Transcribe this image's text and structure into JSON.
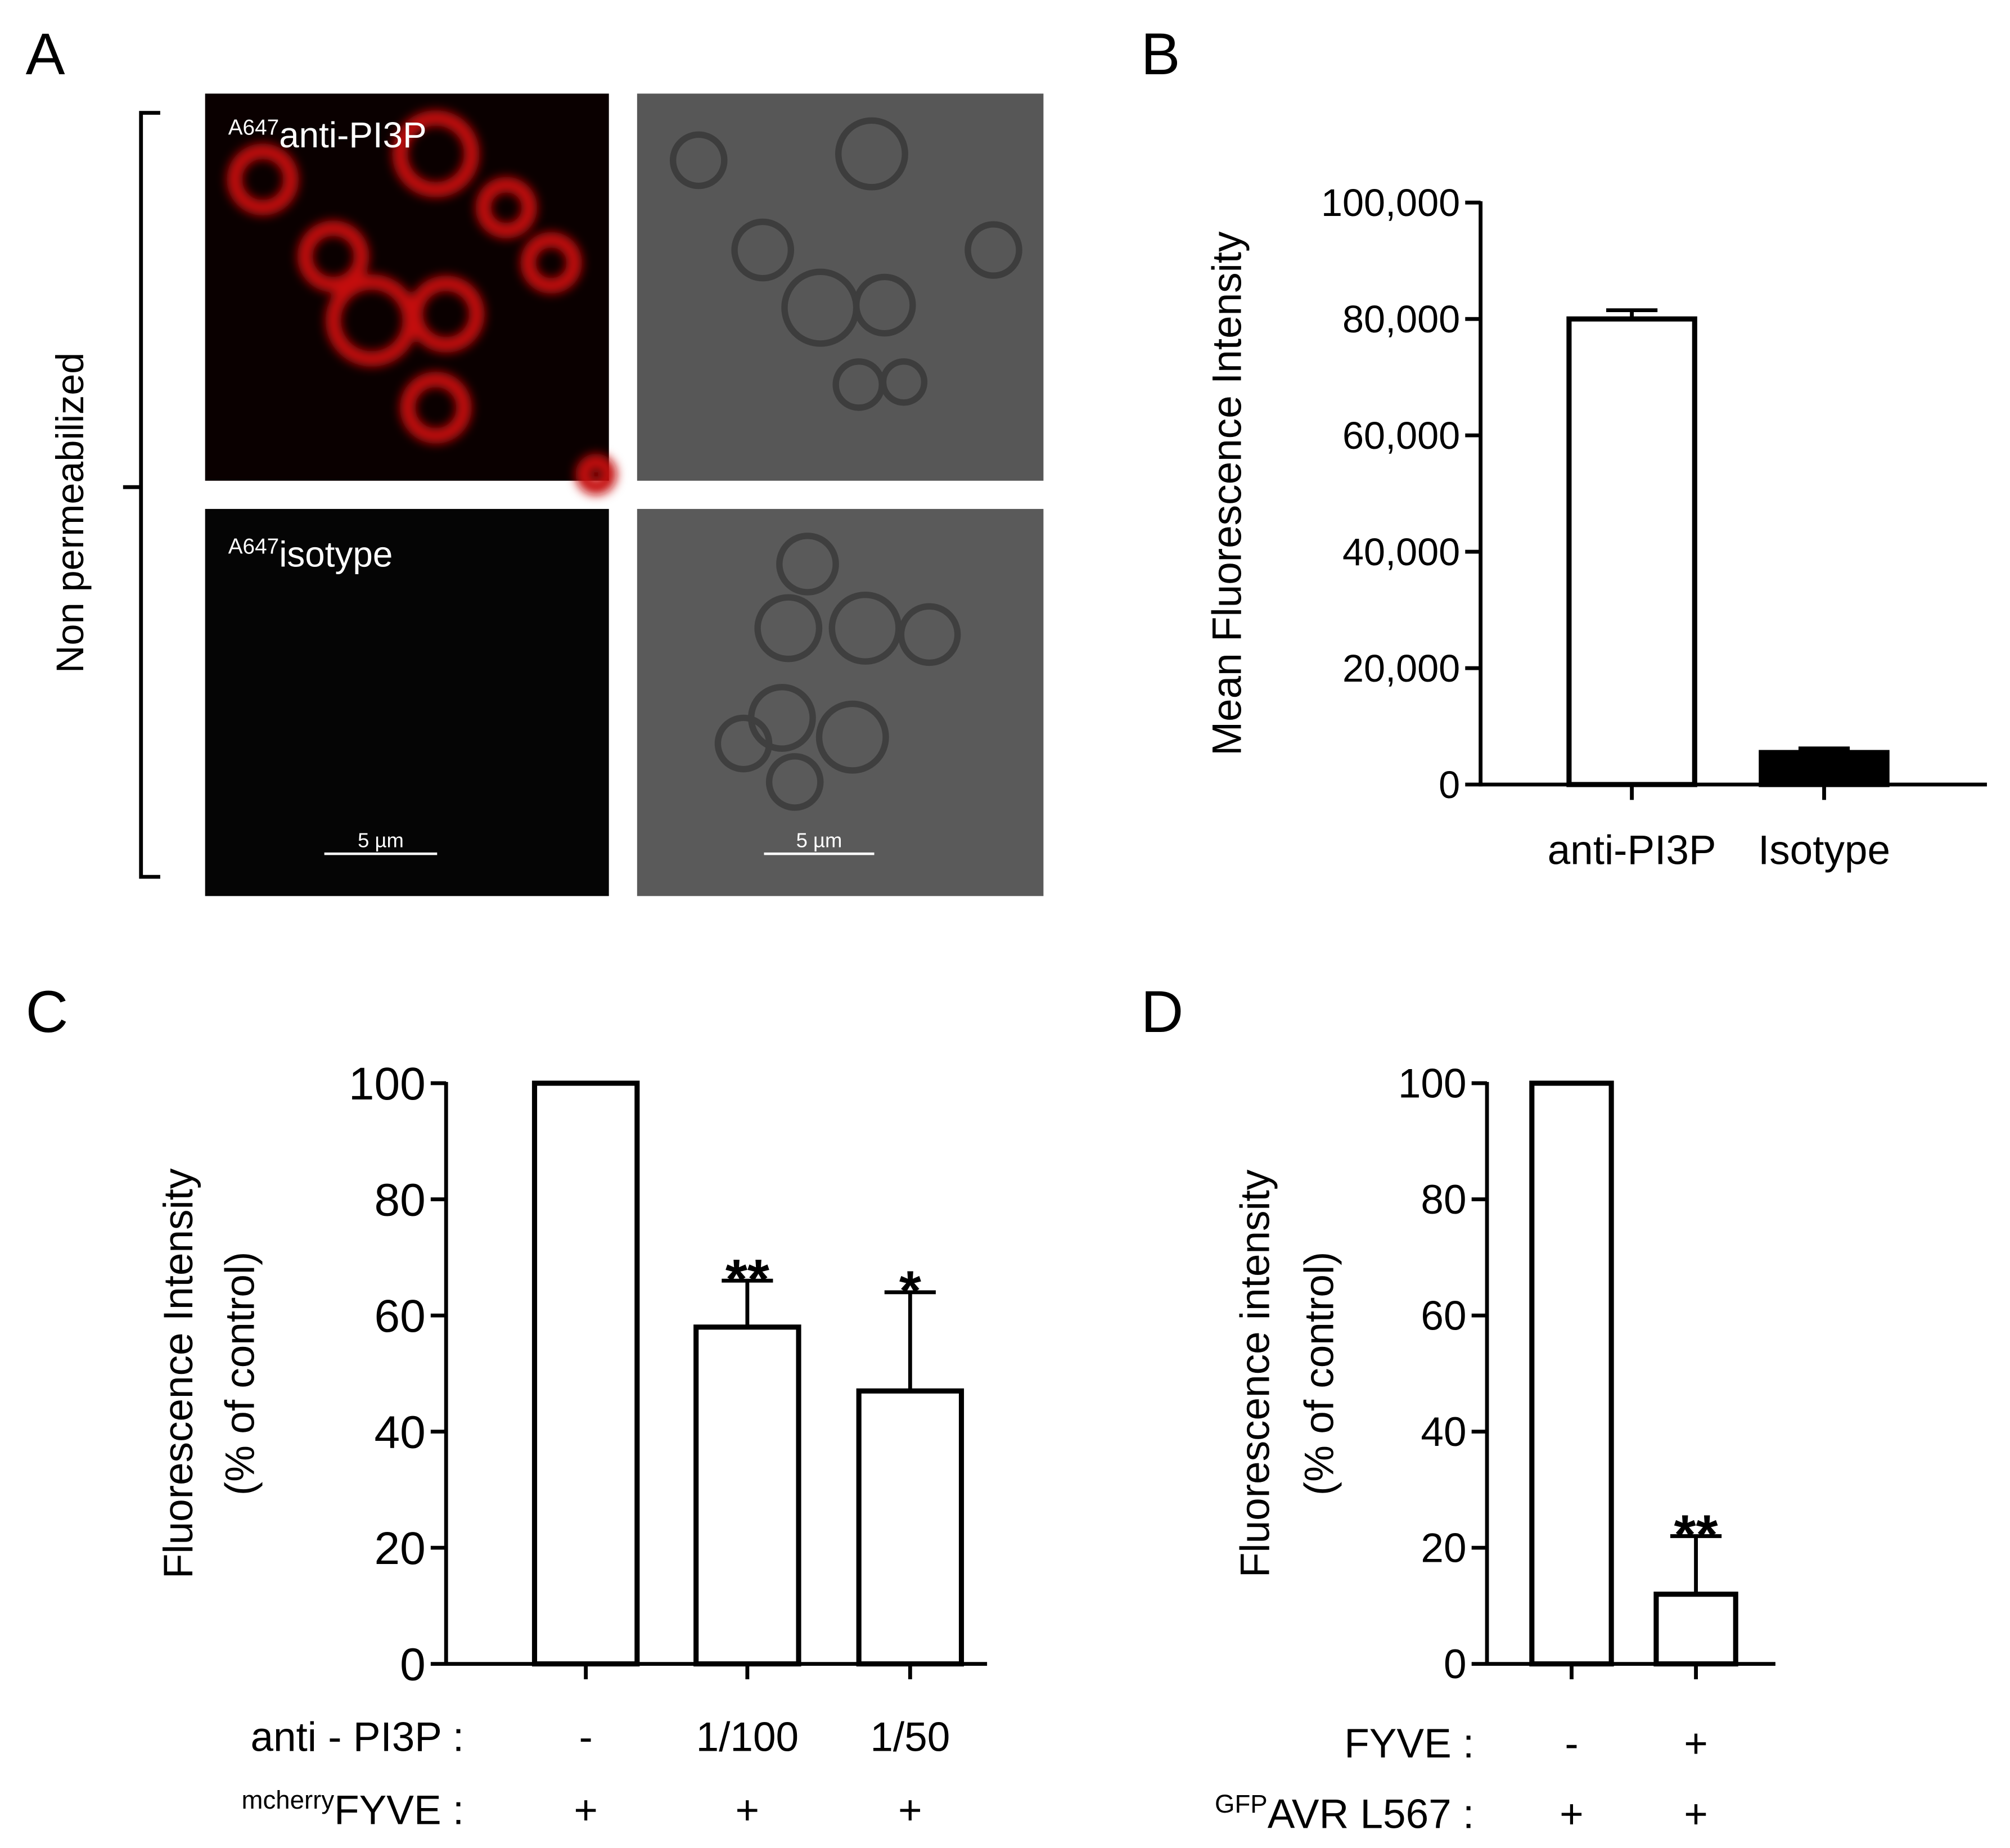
{
  "panel_labels": [
    "A",
    "B",
    "C",
    "D"
  ],
  "images": {
    "side_label": "Non permeabilized",
    "captions": [
      {
        "sup": "A647",
        "text": "anti-PI3P"
      },
      {
        "sup": "A647",
        "text": "isotype"
      }
    ],
    "scale_bars": [
      "5 µm",
      "5 µm"
    ]
  },
  "chart_data": [
    {
      "type": "bar",
      "ylabel": [
        "Mean Fluorescence Intensity"
      ],
      "categories": [
        "anti-PI3P",
        "Isotype"
      ],
      "values": [
        80000,
        5500
      ],
      "errors": [
        1500,
        700
      ],
      "colors": [
        "#ffffff",
        "#000000"
      ],
      "ylim": [
        0,
        100000
      ],
      "yticks": [
        0,
        {
          "value": 20000,
          "label": "20,000"
        },
        {
          "value": 40000,
          "label": "40,000"
        },
        {
          "value": 60000,
          "label": "60,000"
        },
        {
          "value": 80000,
          "label": "80,000"
        },
        {
          "value": 100000,
          "label": "100,000"
        }
      ]
    },
    {
      "type": "bar",
      "ylabel": [
        "Fluorescence Intensity",
        "(% of control)"
      ],
      "values": [
        100,
        58,
        47
      ],
      "errors": [
        null,
        8,
        17
      ],
      "annotations": [
        null,
        "**",
        "*"
      ],
      "colors": [
        "#ffffff",
        "#ffffff",
        "#ffffff"
      ],
      "conditions": [
        {
          "label": "anti - PI3P :",
          "values": [
            "-",
            "1/100",
            "1/50"
          ]
        },
        {
          "sup": "mcherry",
          "label": "FYVE :",
          "values": [
            "+",
            "+",
            "+"
          ]
        }
      ],
      "ylim": [
        0,
        100
      ],
      "yticks": [
        0,
        20,
        40,
        60,
        80,
        100
      ]
    },
    {
      "type": "bar",
      "ylabel": [
        "Fluorescence intensity",
        "(% of control)"
      ],
      "values": [
        100,
        12
      ],
      "errors": [
        null,
        10
      ],
      "annotations": [
        null,
        "**"
      ],
      "colors": [
        "#ffffff",
        "#ffffff"
      ],
      "conditions": [
        {
          "label": "FYVE :",
          "values": [
            "-",
            "+"
          ]
        },
        {
          "sup": "GFP",
          "label": "AVR L567 :",
          "values": [
            "+",
            "+"
          ]
        }
      ],
      "ylim": [
        0,
        100
      ],
      "yticks": [
        0,
        20,
        40,
        60,
        80,
        100
      ]
    }
  ]
}
